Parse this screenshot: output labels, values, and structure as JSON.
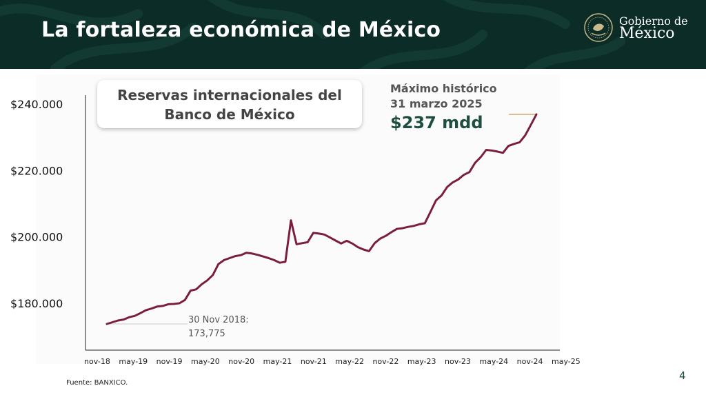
{
  "header": {
    "title": "La fortaleza económica de México"
  },
  "logo": {
    "line1": "Gobierno de",
    "line2": "México"
  },
  "callout": {
    "line1": "Reservas internacionales del",
    "line2": "Banco de México"
  },
  "max_annotation": {
    "line1": "Máximo histórico",
    "line2": "31 marzo 2025",
    "value": "$237 mdd"
  },
  "start_annotation": {
    "line1": "30 Nov 2018:",
    "line2": "173,775"
  },
  "footer": {
    "source": "Fuente: BANXICO.",
    "page": "4"
  },
  "colors": {
    "header_bg": "#0c2d27",
    "line": "#7b1e3c",
    "accent_green": "#1f4d42",
    "marker_gold": "#c8a86b"
  },
  "chart_data": {
    "type": "line",
    "title": "Reservas internacionales del Banco de México",
    "xlabel": "",
    "ylabel": "",
    "yticks": [
      "$180.000",
      "$200.000",
      "$220.000",
      "$240.000"
    ],
    "ytick_values": [
      180000,
      200000,
      220000,
      240000
    ],
    "ylim": [
      168000,
      246000
    ],
    "xticks": [
      "nov-18",
      "may-19",
      "nov-19",
      "may-20",
      "nov-20",
      "may-21",
      "nov-21",
      "may-22",
      "nov-22",
      "may-23",
      "nov-23",
      "may-24",
      "nov-24",
      "may-25"
    ],
    "grid": false,
    "series": [
      {
        "x": [
          "nov-18",
          "dic-18",
          "ene-19",
          "feb-19",
          "mar-19",
          "abr-19",
          "may-19",
          "jun-19",
          "jul-19",
          "ago-19",
          "sep-19",
          "oct-19",
          "nov-19",
          "dic-19",
          "ene-20",
          "feb-20",
          "mar-20",
          "abr-20",
          "may-20",
          "jun-20",
          "jul-20",
          "ago-20",
          "sep-20",
          "oct-20",
          "nov-20",
          "dic-20",
          "ene-21",
          "feb-21",
          "mar-21",
          "abr-21",
          "may-21",
          "jun-21",
          "jul-21",
          "ago-21 (pico)",
          "ago-21",
          "sep-21",
          "oct-21",
          "nov-21",
          "dic-21",
          "ene-22",
          "feb-22",
          "mar-22",
          "abr-22",
          "may-22",
          "jun-22",
          "jul-22",
          "ago-22",
          "sep-22",
          "oct-22",
          "nov-22",
          "dic-22",
          "ene-23",
          "feb-23",
          "mar-23",
          "abr-23",
          "may-23",
          "jun-23",
          "jul-23",
          "ago-23",
          "sep-23",
          "oct-23",
          "nov-23",
          "dic-23",
          "ene-24",
          "feb-24",
          "mar-24",
          "abr-24",
          "may-24",
          "jun-24",
          "jul-24",
          "ago-24",
          "sep-24",
          "oct-24",
          "nov-24",
          "dic-24",
          "ene-25",
          "feb-25",
          "mar-25"
        ],
        "values": [
          173775,
          174300,
          174800,
          175100,
          175800,
          176200,
          177000,
          177900,
          178400,
          179000,
          179200,
          179700,
          179800,
          180000,
          181000,
          183800,
          184200,
          185700,
          186900,
          188500,
          191800,
          193000,
          193600,
          194200,
          194500,
          195200,
          195000,
          194600,
          194100,
          193600,
          193000,
          192200,
          192500,
          205000,
          197800,
          198100,
          198400,
          201200,
          201000,
          200700,
          199800,
          198900,
          198000,
          198800,
          198000,
          196900,
          196200,
          195700,
          198100,
          199500,
          200300,
          201400,
          202400,
          202600,
          203000,
          203300,
          203800,
          204100,
          207500,
          211000,
          212500,
          215000,
          216400,
          217300,
          218700,
          219500,
          222300,
          224000,
          226200,
          226000,
          225700,
          225300,
          227400,
          228000,
          228500,
          230600,
          233700,
          236900
        ]
      }
    ]
  }
}
